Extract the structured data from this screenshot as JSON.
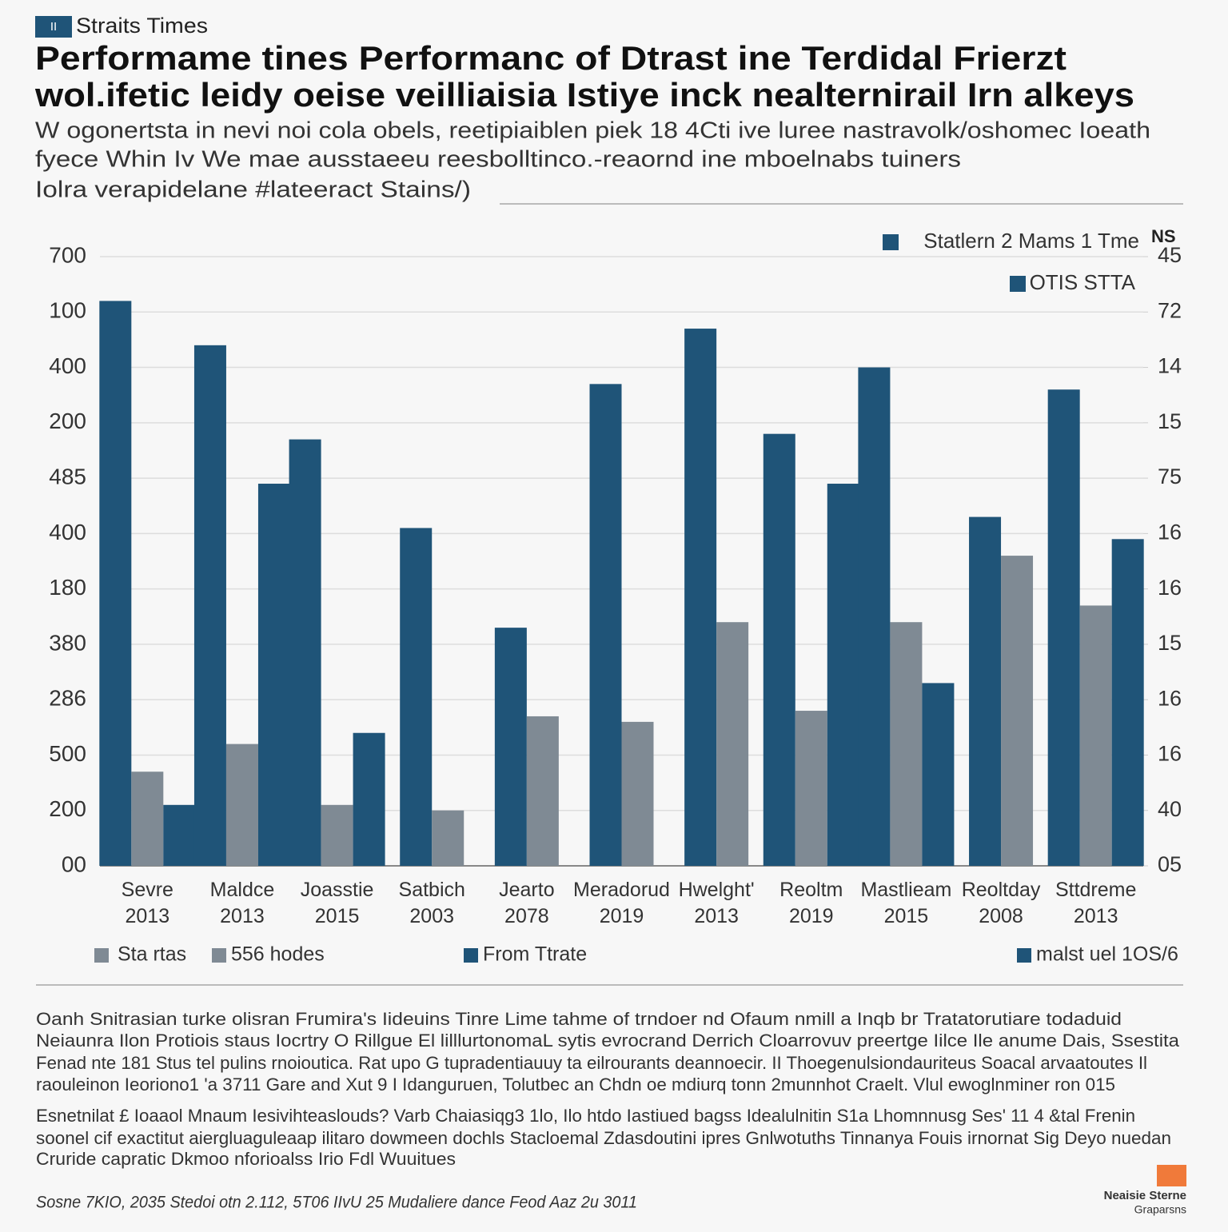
{
  "header": {
    "badge": "II",
    "brand": "Straits Times",
    "title_lines": [
      "Performame tines Performanc of Dtrast ine Terdidal Frierzt",
      "wol.ifetic leidy oeise veilliaisia Istiye inck nealternirail Irn alkeys"
    ],
    "subtitle_lines": [
      "W ogonertsta in nevi noi cola obels, reetipiaiblen piek 18 4Cti ive luree nastravolk/oshomec Ioeath",
      "fyece Whin Iv We mae ausstaeeu reesbolltinco.-reaornd ine mboelnabs tuiners",
      "Iolra verapidelane #lateeract Stains/)"
    ]
  },
  "chart_data": {
    "type": "bar",
    "categories": [
      "Sevre 2013",
      "Maldce 2013",
      "Joasstie 2015",
      "Satbich 2003",
      "Jearto 2078",
      "Meradorud 2019",
      "Hwelght' 2013",
      "Reoltm 2019",
      "Mastlieam 2015",
      "Reoltday 2008",
      "Sttdreme 2013"
    ],
    "series": [
      {
        "name": "Statlern 2 Mams 1 Tme",
        "color": "#1f5478",
        "values": [
          10.2,
          9.4,
          7.7,
          6.1,
          4.3,
          8.7,
          9.7,
          7.8,
          9.0,
          6.3,
          8.6
        ]
      },
      {
        "name": "Sta rtas",
        "color": "#7f8a94",
        "values": [
          1.7,
          2.2,
          1.1,
          1.0,
          2.7,
          2.6,
          4.4,
          2.8,
          4.4,
          5.6,
          4.7
        ]
      },
      {
        "name": "OTIS STTA",
        "color": "#1f5478",
        "values": [
          1.1,
          6.9,
          2.4,
          null,
          null,
          null,
          null,
          6.9,
          3.3,
          null,
          5.9
        ]
      }
    ],
    "ylim": [
      0,
      11
    ],
    "yticks": [
      {
        "value": 0,
        "label": "00"
      },
      {
        "value": 1,
        "label": "200"
      },
      {
        "value": 2,
        "label": "500"
      },
      {
        "value": 3,
        "label": "286"
      },
      {
        "value": 4,
        "label": "380"
      },
      {
        "value": 5,
        "label": "180"
      },
      {
        "value": 6,
        "label": "400"
      },
      {
        "value": 7,
        "label": "485"
      },
      {
        "value": 8,
        "label": "200"
      },
      {
        "value": 9,
        "label": "400"
      },
      {
        "value": 10,
        "label": "100"
      },
      {
        "value": 11,
        "label": "700"
      }
    ],
    "y2lim": [
      0,
      11
    ],
    "y2ticks": [
      {
        "value": 0,
        "label": "05"
      },
      {
        "value": 1,
        "label": "40"
      },
      {
        "value": 2,
        "label": "16"
      },
      {
        "value": 3,
        "label": "16"
      },
      {
        "value": 4,
        "label": "15"
      },
      {
        "value": 5,
        "label": "16"
      },
      {
        "value": 6,
        "label": "16"
      },
      {
        "value": 7,
        "label": "75"
      },
      {
        "value": 8,
        "label": "15"
      },
      {
        "value": 9,
        "label": "14"
      },
      {
        "value": 10,
        "label": "72"
      },
      {
        "value": 11,
        "label": "45"
      }
    ],
    "y2_label": "NS",
    "grid": true,
    "extra_legend": [
      {
        "label": "556 hodes",
        "color": "#7f8a94"
      },
      {
        "label": "From Ttrate",
        "color": "#1f5478"
      },
      {
        "label": "malst uel 1OS/6",
        "color": "#1f5478"
      }
    ]
  },
  "body": {
    "paragraphs": [
      [
        "Oanh Snitrasian turke olisran Frumira's Iideuins Tinre Lime tahme of trndoer nd Ofaum nmill a Inqb br Tratatorutiare todaduid",
        "Neiaunra Ilon Protiois staus Iocrtry O Rillgue El lilllurtonomaL sytis evrocrand Derrich Cloarrovuv preertge Iilce Ile anume Dais, Ssestita",
        "Fenad nte 181 Stus tel pulins rnoioutica. Rat upo G tupradentiauuy ta eilrourants deannoecir. II Thoegenulsiondauriteus Soacal arvaatoutes Il",
        "raouleinon Ieoriono1 'a 3711 Gare and Xut 9 I Idanguruen, Tolutbec an Chdn oe mdiurq tonn 2munnhot Craelt. Vlul ewoglnminer ron 015"
      ],
      [
        "Esnetnilat £ Ioaaol Mnaum Iesivihteaslouds? Varb Chaiasiqg3 1lo, Ilo htdo Iastiued bagss Idealulnitin S1a Lhomnnusg Ses' 11 4 &tal Frenin",
        "soonel cif exactitut aiergluaguleaap ilitaro dowmeen dochls Stacloemal Zdasdoutini ipres Gnlwotuths Tinnanya Fouis irnornat Sig Deyo nuedan",
        "Cruride capratic Dkmoo nforioalss Irio Fdl Wuuitues"
      ]
    ],
    "source": "Sosne 7KIO, 2035 Stedoi otn 2.112, 5T06 IIvU 25 Mudaliere dance Feod Aaz 2u 3011",
    "logo": [
      "Neaisie Sterne",
      "Graparsns"
    ]
  }
}
